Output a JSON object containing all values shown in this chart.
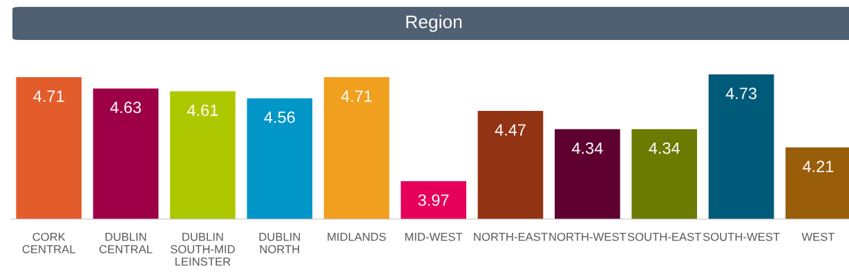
{
  "chart_data": {
    "type": "bar",
    "title": "Region",
    "categories": [
      "CORK\nCENTRAL",
      "DUBLIN\nCENTRAL",
      "DUBLIN\nSOUTH-MID\nLEINSTER",
      "DUBLIN\nNORTH",
      "MIDLANDS",
      "MID-WEST",
      "NORTH-EAST",
      "NORTH-WEST",
      "SOUTH-EAST",
      "SOUTH-WEST",
      "WEST"
    ],
    "values": [
      4.71,
      4.63,
      4.61,
      4.56,
      4.71,
      3.97,
      4.47,
      4.34,
      4.34,
      4.73,
      4.21
    ],
    "colors": [
      "#e35d2c",
      "#9e0048",
      "#aec800",
      "#0096c8",
      "#f0a01e",
      "#e6005a",
      "#923414",
      "#5e0030",
      "#6b7a00",
      "#005a7a",
      "#9a5d0a"
    ],
    "ylim": [
      3.7,
      4.73
    ],
    "tick_labels": "x",
    "data_labels": true,
    "grid": false,
    "legend": false
  }
}
